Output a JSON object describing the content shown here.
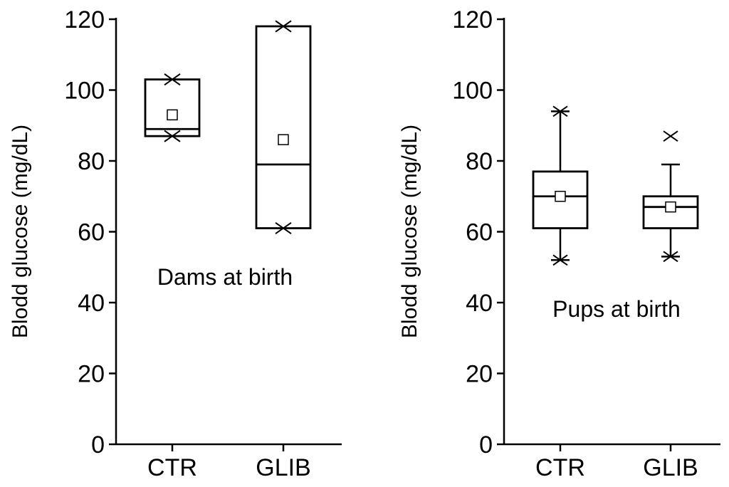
{
  "chart_data": [
    {
      "type": "box",
      "title": "",
      "annotation": "Dams at birth",
      "ylabel": "Blodd glucose (mg/dL)",
      "xlabel": "",
      "ylim": [
        0,
        120
      ],
      "yticks": [
        0,
        20,
        40,
        60,
        80,
        100,
        120
      ],
      "categories": [
        "CTR",
        "GLIB"
      ],
      "boxes": [
        {
          "q1": 87,
          "median": 89,
          "q3": 103,
          "mean": 93,
          "outliers": [
            103,
            87
          ]
        },
        {
          "q1": 61,
          "median": 79,
          "q3": 118,
          "mean": 86,
          "outliers": [
            118,
            61
          ]
        }
      ]
    },
    {
      "type": "box",
      "title": "",
      "annotation": "Pups at birth",
      "ylabel": "Blodd glucose (mg/dL)",
      "xlabel": "",
      "ylim": [
        0,
        120
      ],
      "yticks": [
        0,
        20,
        40,
        60,
        80,
        100,
        120
      ],
      "categories": [
        "CTR",
        "GLIB"
      ],
      "boxes": [
        {
          "q1": 61,
          "median": 70,
          "q3": 77,
          "mean": 70,
          "whisker_low": 52,
          "whisker_high": 94,
          "outliers": [
            94,
            52
          ]
        },
        {
          "q1": 61,
          "median": 67,
          "q3": 70,
          "mean": 67,
          "whisker_low": 53,
          "whisker_high": 79,
          "outliers": [
            87,
            53
          ]
        }
      ]
    }
  ]
}
